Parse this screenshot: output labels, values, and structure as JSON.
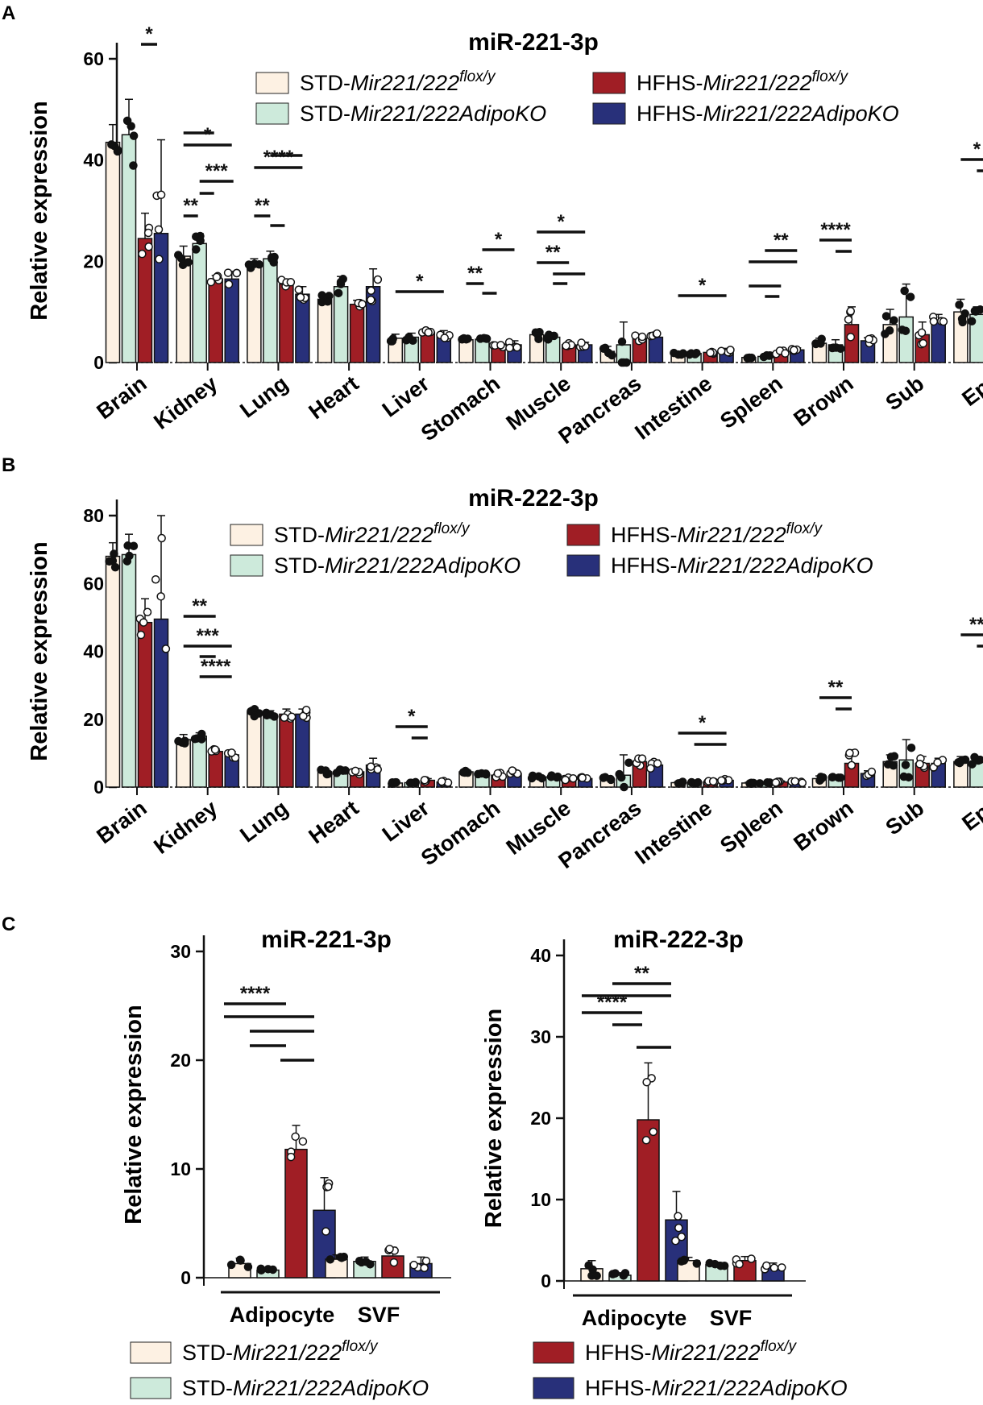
{
  "figure": {
    "panel_labels": [
      "A",
      "B",
      "C"
    ],
    "legend": [
      {
        "prefix": "STD-",
        "gene": "Mir221/222",
        "sup": "flox/y",
        "color": "#fdf1e3"
      },
      {
        "prefix": "STD-",
        "gene": "Mir221/222AdipoKO",
        "sup": "",
        "color": "#cdeadb"
      },
      {
        "prefix": "HFHS-",
        "gene": "Mir221/222",
        "sup": "flox/y",
        "color": "#a01e25"
      },
      {
        "prefix": "HFHS-",
        "gene": "Mir221/222AdipoKO",
        "sup": "",
        "color": "#28307a"
      }
    ]
  },
  "chart_data": [
    {
      "panel": "A",
      "type": "bar",
      "title": "miR-221-3p",
      "ylabel": "Relative expression",
      "xlabel": "",
      "ylim": [
        0,
        60
      ],
      "yticks": [
        0,
        20,
        40,
        60
      ],
      "categories": [
        "Brain",
        "Kidney",
        "Lung",
        "Heart",
        "Liver",
        "Stomach",
        "Muscle",
        "Pancreas",
        "Intestine",
        "Spleen",
        "Brown",
        "Sub",
        "Epi"
      ],
      "series": [
        {
          "name": "STD-Mir221/222flox/y",
          "values": [
            43.5,
            21,
            19.5,
            12.5,
            4.8,
            4.5,
            5.5,
            2.2,
            1.7,
            1.0,
            3.8,
            7.5,
            10.0
          ],
          "errors": [
            3.5,
            2.0,
            1.0,
            1.0,
            0.8,
            0.5,
            1.0,
            1.0,
            0.3,
            0.2,
            1.0,
            3.0,
            2.5
          ]
        },
        {
          "name": "STD-Mir221/222AdipoKO",
          "values": [
            45,
            23.5,
            20.5,
            15,
            5.0,
            4.6,
            5.0,
            3.5,
            1.8,
            1.2,
            3.5,
            9.0,
            9.5
          ],
          "errors": [
            7.0,
            2.0,
            1.5,
            2.0,
            0.8,
            0.4,
            0.6,
            4.5,
            0.3,
            0.3,
            1.0,
            6.5,
            1.5
          ]
        },
        {
          "name": "HFHS-Mir221/222flox/y",
          "values": [
            24.5,
            16.5,
            15.5,
            11.5,
            6.0,
            3.0,
            3.5,
            4.8,
            2.0,
            2.0,
            7.5,
            5.5,
            20.5
          ],
          "errors": [
            5.0,
            0.7,
            1.0,
            0.8,
            0.5,
            0.5,
            0.5,
            0.8,
            0.3,
            0.4,
            3.5,
            2.5,
            6.5
          ]
        },
        {
          "name": "HFHS-Mir221/222AdipoKO",
          "values": [
            25.5,
            16.5,
            13.5,
            15,
            5.5,
            3.5,
            3.5,
            5.0,
            2.3,
            2.5,
            4.3,
            8.0,
            13.5
          ],
          "errors": [
            18.5,
            1.5,
            1.5,
            3.5,
            0.8,
            0.8,
            0.5,
            1.0,
            0.5,
            0.4,
            0.6,
            1.5,
            3.0
          ]
        }
      ],
      "significance": [
        "*",
        "*",
        "***",
        "**",
        "****",
        "**",
        "*",
        "*",
        "**",
        "*",
        "**",
        "*",
        "**",
        "****",
        "*",
        "**",
        "*"
      ]
    },
    {
      "panel": "B",
      "type": "bar",
      "title": "miR-222-3p",
      "ylabel": "Relative expression",
      "xlabel": "",
      "ylim": [
        0,
        80
      ],
      "yticks": [
        0,
        20,
        40,
        60,
        80
      ],
      "categories": [
        "Brain",
        "Kidney",
        "Lung",
        "Heart",
        "Liver",
        "Stomach",
        "Muscle",
        "Pancreas",
        "Intestine",
        "Spleen",
        "Brown",
        "Sub",
        "Epi"
      ],
      "series": [
        {
          "name": "STD-Mir221/222flox/y",
          "values": [
            68,
            14,
            22,
            4.5,
            1.2,
            4.5,
            3.0,
            2.2,
            1.3,
            1.2,
            2.5,
            7.5,
            7.5
          ],
          "errors": [
            4.0,
            1.5,
            1.5,
            0.8,
            0.3,
            0.6,
            0.5,
            0.8,
            0.3,
            0.2,
            0.8,
            2.0,
            1.5
          ]
        },
        {
          "name": "STD-Mir221/222AdipoKO",
          "values": [
            68.5,
            15,
            21.5,
            4.5,
            1.3,
            4.0,
            3.0,
            3.5,
            1.3,
            1.2,
            2.8,
            8.0,
            7.5
          ],
          "errors": [
            6.0,
            1.0,
            1.0,
            0.8,
            0.3,
            0.6,
            0.5,
            6.0,
            0.3,
            0.2,
            0.6,
            6.0,
            1.5
          ]
        },
        {
          "name": "HFHS-Mir221/222flox/y",
          "values": [
            48.5,
            10.5,
            21.5,
            4.5,
            2.0,
            3.5,
            2.5,
            7.5,
            1.5,
            1.5,
            7.0,
            7.0,
            18.5
          ],
          "errors": [
            7.0,
            0.8,
            1.5,
            0.8,
            0.5,
            0.8,
            0.5,
            1.5,
            0.3,
            0.3,
            4.0,
            2.0,
            6.5
          ]
        },
        {
          "name": "HFHS-Mir221/222AdipoKO",
          "values": [
            49.5,
            9.5,
            21.5,
            6.5,
            1.5,
            4.0,
            2.5,
            6.5,
            2.0,
            1.5,
            4.0,
            7.0,
            10.0
          ],
          "errors": [
            30.5,
            1.0,
            1.5,
            2.0,
            0.3,
            1.0,
            0.5,
            1.5,
            0.4,
            0.3,
            0.8,
            1.5,
            2.5
          ]
        }
      ],
      "significance": [
        "**",
        "***",
        "****",
        "*",
        "*",
        "**",
        "**",
        "*"
      ]
    },
    {
      "panel": "C",
      "type": "bar",
      "title": "miR-221-3p",
      "ylabel": "Relative expression",
      "xlabel": "",
      "ylim": [
        0,
        30
      ],
      "yticks": [
        0,
        10,
        20,
        30
      ],
      "categories": [
        "Adipocyte",
        "SVF"
      ],
      "series": [
        {
          "name": "STD-Mir221/222flox/y",
          "values": [
            1.3,
            1.7
          ],
          "errors": [
            0.5,
            0.4
          ]
        },
        {
          "name": "STD-Mir221/222AdipoKO",
          "values": [
            0.7,
            1.5
          ],
          "errors": [
            0.2,
            0.4
          ]
        },
        {
          "name": "HFHS-Mir221/222flox/y",
          "values": [
            11.8,
            2.0
          ],
          "errors": [
            2.2,
            0.8
          ]
        },
        {
          "name": "HFHS-Mir221/222AdipoKO",
          "values": [
            6.2,
            1.3
          ],
          "errors": [
            3.0,
            0.6
          ]
        }
      ],
      "significance": [
        "****"
      ]
    },
    {
      "panel": "C",
      "type": "bar",
      "title": "miR-222-3p",
      "ylabel": "Relative expression",
      "xlabel": "",
      "ylim": [
        0,
        40
      ],
      "yticks": [
        0,
        10,
        20,
        30,
        40
      ],
      "categories": [
        "Adipocyte",
        "SVF"
      ],
      "series": [
        {
          "name": "STD-Mir221/222flox/y",
          "values": [
            1.5,
            2.5
          ],
          "errors": [
            1.0,
            0.4
          ]
        },
        {
          "name": "STD-Mir221/222AdipoKO",
          "values": [
            0.7,
            2.0
          ],
          "errors": [
            0.3,
            0.3
          ]
        },
        {
          "name": "HFHS-Mir221/222flox/y",
          "values": [
            19.8,
            2.5
          ],
          "errors": [
            7.0,
            0.5
          ]
        },
        {
          "name": "HFHS-Mir221/222AdipoKO",
          "values": [
            7.5,
            1.8
          ],
          "errors": [
            3.5,
            0.4
          ]
        }
      ],
      "significance": [
        "**",
        "****"
      ]
    }
  ]
}
